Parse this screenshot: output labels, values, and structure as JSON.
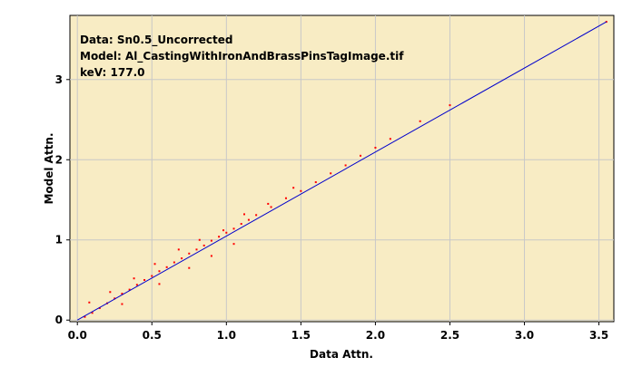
{
  "chart_data": {
    "type": "scatter",
    "xlabel": "Data Attn.",
    "ylabel": "Model Attn.",
    "xlim": [
      -0.05,
      3.6
    ],
    "ylim": [
      -0.02,
      3.8
    ],
    "x_ticks": [
      "0.0",
      "0.5",
      "1.0",
      "1.5",
      "2.0",
      "2.5",
      "3.0",
      "3.5"
    ],
    "x_tick_values": [
      0,
      0.5,
      1,
      1.5,
      2,
      2.5,
      3,
      3.5
    ],
    "y_ticks": [
      "0",
      "1",
      "2",
      "3"
    ],
    "y_tick_values": [
      0,
      1,
      2,
      3
    ],
    "grid": true,
    "annotations": [
      "Data: Sn0.5_Uncorrected",
      "Model: Al_CastingWithIronAndBrassPinsTagImage.tif",
      "keV: 177.0"
    ],
    "series": [
      {
        "kind": "points",
        "x": [
          0.05,
          0.1,
          0.15,
          0.2,
          0.25,
          0.3,
          0.35,
          0.4,
          0.45,
          0.5,
          0.55,
          0.6,
          0.65,
          0.7,
          0.75,
          0.8,
          0.85,
          0.9,
          0.95,
          1.0,
          1.05,
          1.1,
          1.15,
          1.2,
          1.3,
          1.4,
          1.5,
          1.6,
          1.7,
          1.8,
          1.9,
          2.0,
          2.1,
          2.3,
          2.5,
          3.55,
          0.08,
          0.22,
          0.38,
          0.52,
          0.68,
          0.82,
          0.98,
          1.12,
          1.28,
          1.45,
          0.3,
          0.55,
          0.75,
          0.9,
          1.05
        ],
        "y": [
          0.04,
          0.09,
          0.15,
          0.21,
          0.27,
          0.33,
          0.38,
          0.44,
          0.5,
          0.55,
          0.61,
          0.66,
          0.72,
          0.77,
          0.83,
          0.88,
          0.93,
          0.99,
          1.04,
          1.09,
          1.14,
          1.2,
          1.25,
          1.31,
          1.41,
          1.52,
          1.61,
          1.72,
          1.83,
          1.93,
          2.05,
          2.15,
          2.26,
          2.48,
          2.68,
          3.72,
          0.22,
          0.35,
          0.52,
          0.7,
          0.88,
          1.0,
          1.12,
          1.32,
          1.45,
          1.65,
          0.2,
          0.45,
          0.65,
          0.8,
          0.95
        ],
        "color": "#ff0000"
      },
      {
        "kind": "line",
        "x": [
          0.0,
          3.55
        ],
        "y": [
          0.0,
          3.72
        ],
        "color": "#0000cc"
      }
    ]
  },
  "colors": {
    "plot_background": "#f8ecc4",
    "grid": "#c8c8c8",
    "points": "#ff0000",
    "fit_line": "#0000cc"
  }
}
